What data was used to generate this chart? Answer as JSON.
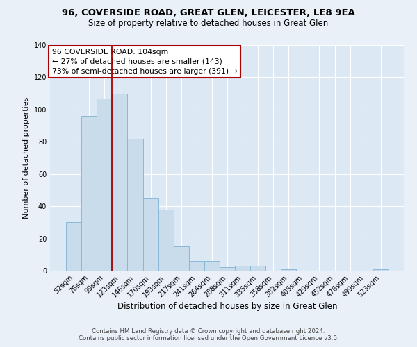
{
  "title": "96, COVERSIDE ROAD, GREAT GLEN, LEICESTER, LE8 9EA",
  "subtitle": "Size of property relative to detached houses in Great Glen",
  "xlabel": "Distribution of detached houses by size in Great Glen",
  "ylabel": "Number of detached properties",
  "bar_labels": [
    "52sqm",
    "76sqm",
    "99sqm",
    "123sqm",
    "146sqm",
    "170sqm",
    "193sqm",
    "217sqm",
    "241sqm",
    "264sqm",
    "288sqm",
    "311sqm",
    "335sqm",
    "358sqm",
    "382sqm",
    "405sqm",
    "429sqm",
    "452sqm",
    "476sqm",
    "499sqm",
    "523sqm"
  ],
  "bar_values": [
    30,
    96,
    107,
    110,
    82,
    45,
    38,
    15,
    6,
    6,
    2,
    3,
    3,
    0,
    1,
    0,
    0,
    0,
    0,
    0,
    1
  ],
  "bar_color": "#c8dcec",
  "bar_edge_color": "#8ab8d8",
  "vline_x": 2.5,
  "vline_color": "#aa0000",
  "ylim": [
    0,
    140
  ],
  "yticks": [
    0,
    20,
    40,
    60,
    80,
    100,
    120,
    140
  ],
  "annotation_line1": "96 COVERSIDE ROAD: 104sqm",
  "annotation_line2": "← 27% of detached houses are smaller (143)",
  "annotation_line3": "73% of semi-detached houses are larger (391) →",
  "bg_color": "#eaf0f8",
  "plot_bg_color": "#dce8f4",
  "footer_line1": "Contains HM Land Registry data © Crown copyright and database right 2024.",
  "footer_line2": "Contains public sector information licensed under the Open Government Licence v3.0.",
  "title_fontsize": 9.5,
  "subtitle_fontsize": 8.5,
  "xlabel_fontsize": 8.5,
  "ylabel_fontsize": 8.0,
  "tick_fontsize": 7.0,
  "annot_fontsize": 7.8,
  "footer_fontsize": 6.2
}
